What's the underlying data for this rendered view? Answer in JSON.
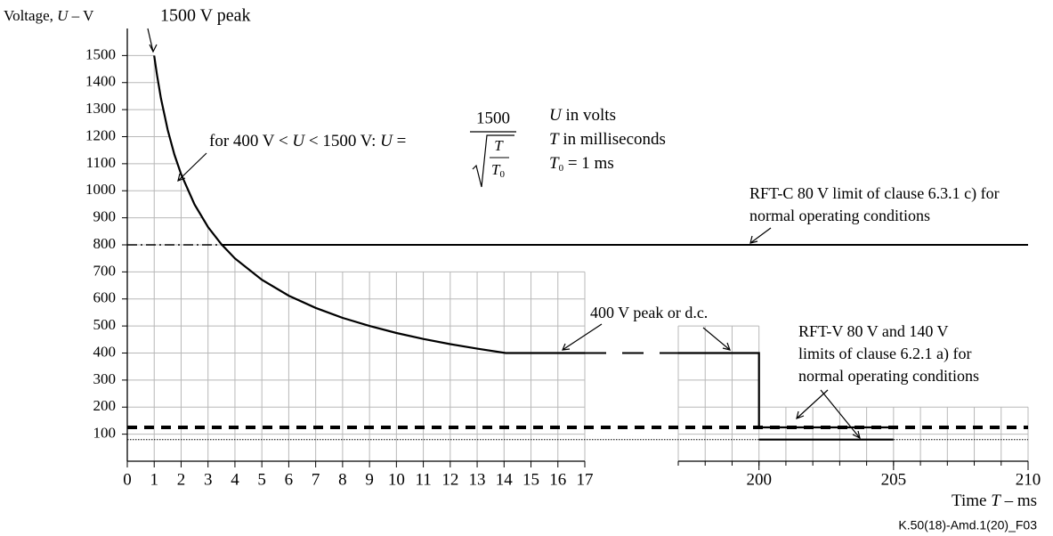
{
  "chart_data": {
    "type": "line",
    "y_label": [
      "Voltage, ",
      "U",
      " – V"
    ],
    "x_label": [
      "Time ",
      "T",
      " – ms"
    ],
    "footer": "K.50(18)-Amd.1(20)_F03",
    "ylim": [
      0,
      1600
    ],
    "yticks": [
      100,
      200,
      300,
      400,
      500,
      600,
      700,
      800,
      900,
      1000,
      1100,
      1200,
      1300,
      1400,
      1500
    ],
    "xlim": [
      0,
      17
    ],
    "xticks": [
      0,
      1,
      2,
      3,
      4,
      5,
      6,
      7,
      8,
      9,
      10,
      11,
      12,
      13,
      14,
      15,
      16,
      17
    ],
    "x2lim": [
      197,
      210
    ],
    "x2ticks": [
      200,
      205,
      210
    ],
    "grid": true,
    "series": [
      {
        "color": "#000",
        "style": "solid",
        "width": 2.2,
        "x": [
          1,
          1.1,
          1.25,
          1.5,
          1.75,
          2,
          2.5,
          3,
          3.5,
          4,
          5,
          6,
          7,
          8,
          9,
          10,
          11,
          12,
          13,
          14.06,
          17
        ],
        "values": [
          1500,
          1430,
          1342,
          1225,
          1134,
          1061,
          949,
          866,
          802,
          750,
          671,
          612,
          567,
          530,
          500,
          474,
          452,
          433,
          416,
          400,
          400
        ]
      },
      {
        "color": "#000",
        "style": "longdash",
        "width": 2,
        "x": [
          17,
          197
        ],
        "values": [
          400,
          400
        ]
      },
      {
        "color": "#000",
        "style": "solid",
        "width": 2.2,
        "x": [
          197,
          200,
          200,
          205
        ],
        "values": [
          400,
          400,
          125,
          125
        ]
      },
      {
        "color": "#000",
        "style": "solid",
        "width": 2.2,
        "x": [
          200,
          205
        ],
        "values": [
          80,
          80
        ]
      },
      {
        "color": "#000",
        "style": "dashed",
        "width": 4,
        "x": [
          0,
          210
        ],
        "values": [
          125,
          125
        ]
      },
      {
        "color": "#000",
        "style": "dotted",
        "width": 1,
        "x": [
          0,
          210
        ],
        "values": [
          80,
          80
        ]
      },
      {
        "color": "#000",
        "style": "dashdot",
        "width": 1.6,
        "x": [
          0,
          3.5
        ],
        "values": [
          800,
          800
        ]
      },
      {
        "color": "#000",
        "style": "solid",
        "width": 2,
        "x": [
          3.5,
          210
        ],
        "values": [
          800,
          800
        ]
      }
    ],
    "annotations": {
      "peak": "1500 V peak",
      "formula_lhs": [
        "for 400 V < ",
        "U",
        " < 1500  V: ",
        "U",
        " ="
      ],
      "formula_num": "1500",
      "formula_T": "T",
      "formula_T0": [
        "T",
        "0"
      ],
      "units": [
        [
          "U",
          " in volts"
        ],
        [
          "T",
          " in milliseconds"
        ],
        [
          "T",
          "0",
          " = 1 ms"
        ]
      ],
      "rftc": [
        "RFT-C 80 V limit of clause 6.3.1 c) for",
        "normal operating conditions"
      ],
      "dc": "400 V peak or d.c.",
      "rftv": [
        "RFT-V 80 V and 140 V",
        "limits of clause 6.2.1 a) for",
        "normal operating conditions"
      ]
    }
  }
}
